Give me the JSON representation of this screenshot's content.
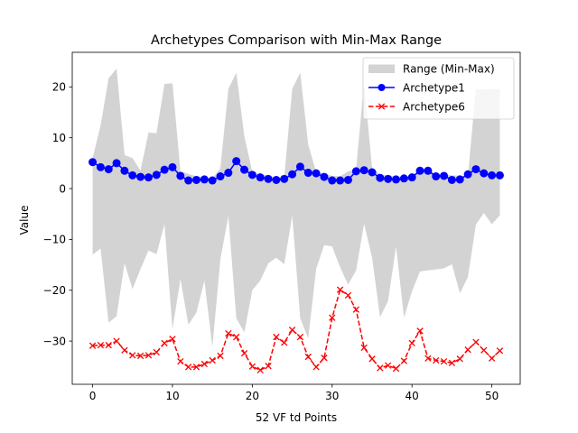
{
  "chart_data": {
    "type": "line",
    "title": "Archetypes Comparison with Min-Max Range",
    "xlabel": "52 VF td Points",
    "ylabel": "Value",
    "xlim": [
      -2.55,
      53.55
    ],
    "ylim": [
      -38.5,
      26.8
    ],
    "xticks": [
      0,
      10,
      20,
      30,
      40,
      50
    ],
    "yticks": [
      -30,
      -20,
      -10,
      0,
      10,
      20
    ],
    "grid": false,
    "legend_position": "top-right",
    "x": [
      0,
      1,
      2,
      3,
      4,
      5,
      6,
      7,
      8,
      9,
      10,
      11,
      12,
      13,
      14,
      15,
      16,
      17,
      18,
      19,
      20,
      21,
      22,
      23,
      24,
      25,
      26,
      27,
      28,
      29,
      30,
      31,
      32,
      33,
      34,
      35,
      36,
      37,
      38,
      39,
      40,
      41,
      42,
      43,
      44,
      45,
      46,
      47,
      48,
      49,
      50,
      51
    ],
    "range": {
      "name": "Range (Min-Max)",
      "color": "#d3d3d3",
      "max": [
        6.0,
        12.4,
        21.7,
        23.6,
        6.6,
        6.0,
        3.5,
        11.0,
        10.9,
        20.6,
        20.7,
        3.4,
        2.9,
        2.4,
        2.3,
        2.0,
        4.0,
        19.6,
        22.8,
        10.3,
        3.3,
        2.8,
        2.6,
        2.1,
        2.3,
        19.6,
        22.8,
        8.7,
        3.2,
        2.9,
        2.5,
        2.4,
        3.4,
        3.8,
        20.8,
        4.0,
        2.8,
        2.6,
        2.4,
        2.2,
        2.6,
        3.8,
        3.9,
        2.8,
        2.9,
        2.6,
        2.5,
        2.5,
        19.6,
        19.5,
        19.6,
        19.6
      ],
      "min": [
        -13.0,
        -11.8,
        -26.4,
        -25.1,
        -14.7,
        -19.8,
        -15.8,
        -12.2,
        -12.9,
        -7.0,
        -27.6,
        -17.8,
        -26.8,
        -24.4,
        -18.1,
        -31.2,
        -13.9,
        -5.4,
        -25.5,
        -28.3,
        -20.0,
        -18.1,
        -14.7,
        -13.6,
        -14.9,
        -5.3,
        -25.5,
        -29.5,
        -15.8,
        -11.1,
        -11.4,
        -15.5,
        -18.9,
        -16.1,
        -6.9,
        -13.6,
        -25.3,
        -22.1,
        -11.4,
        -25.4,
        -20.2,
        -16.3,
        -16.1,
        -15.9,
        -15.7,
        -14.9,
        -20.6,
        -17.4,
        -7.1,
        -4.8,
        -7.0,
        -5.3
      ]
    },
    "series": [
      {
        "name": "Archetype1",
        "color": "#0000ff",
        "linestyle": "solid",
        "marker": "circle",
        "values": [
          5.2,
          4.2,
          3.8,
          5.0,
          3.5,
          2.6,
          2.3,
          2.2,
          2.7,
          3.7,
          4.2,
          2.5,
          1.6,
          1.7,
          1.8,
          1.6,
          2.4,
          3.1,
          5.4,
          3.7,
          2.7,
          2.2,
          1.9,
          1.7,
          1.9,
          2.8,
          4.3,
          3.1,
          3.0,
          2.3,
          1.6,
          1.6,
          1.7,
          3.4,
          3.6,
          3.2,
          2.1,
          1.9,
          1.8,
          2.0,
          2.2,
          3.5,
          3.5,
          2.4,
          2.5,
          1.7,
          1.8,
          2.8,
          3.8,
          3.0,
          2.6,
          2.6
        ]
      },
      {
        "name": "Archetype6",
        "color": "#ff0000",
        "linestyle": "dashed",
        "marker": "x",
        "values": [
          -30.9,
          -30.8,
          -30.8,
          -30.0,
          -31.8,
          -32.8,
          -32.9,
          -32.8,
          -32.2,
          -30.4,
          -29.6,
          -34.0,
          -35.1,
          -35.1,
          -34.5,
          -33.8,
          -32.9,
          -28.5,
          -29.2,
          -32.4,
          -35.0,
          -35.7,
          -34.9,
          -29.2,
          -30.3,
          -27.8,
          -29.2,
          -33.1,
          -35.1,
          -33.3,
          -25.4,
          -19.9,
          -21.0,
          -23.8,
          -31.3,
          -33.5,
          -35.3,
          -34.8,
          -35.4,
          -33.9,
          -30.4,
          -28.0,
          -33.4,
          -33.8,
          -34.0,
          -34.3,
          -33.5,
          -31.7,
          -30.2,
          -31.8,
          -33.4,
          -31.9
        ]
      }
    ]
  }
}
